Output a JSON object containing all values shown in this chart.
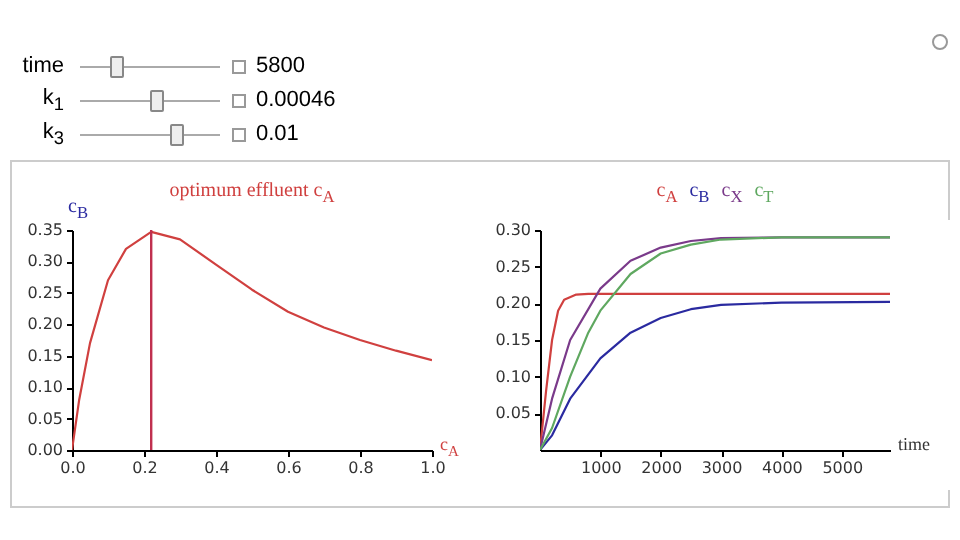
{
  "chart_data": [
    {
      "type": "other",
      "annotations": [
        "time",
        "5800",
        "k$_{1}$",
        "0.00046",
        "k$_{3}$",
        "0.01"
      ]
    },
    {
      "type": "line",
      "title": "optimum effluent c$_{A}$",
      "xlabel": "c$_{A}$",
      "ylabel": "c$_{B}$",
      "xlim": [
        0,
        1
      ],
      "xticks": [
        {
          "value": 0,
          "label": "0.0"
        },
        {
          "value": 0.2,
          "label": "0.2"
        },
        {
          "value": 0.4,
          "label": "0.4"
        },
        {
          "value": 0.6,
          "label": "0.6"
        },
        {
          "value": 0.8,
          "label": "0.8"
        },
        {
          "value": 1,
          "label": "1.0"
        }
      ],
      "ylim": [
        0,
        0.35
      ],
      "yticks": [
        {
          "value": 0,
          "label": "0.00"
        },
        {
          "value": 0.05,
          "label": "0.05"
        },
        {
          "value": 0.1,
          "label": "0.10"
        },
        {
          "value": 0.15,
          "label": "0.15"
        },
        {
          "value": 0.2,
          "label": "0.20"
        },
        {
          "value": 0.25,
          "label": "0.25"
        },
        {
          "value": 0.3,
          "label": "0.30"
        },
        {
          "value": 0.35,
          "label": "0.35"
        }
      ],
      "grid": false,
      "x": [
        0,
        0.02,
        0.05,
        0.1,
        0.15,
        0.22,
        0.3,
        0.4,
        0.5,
        0.6,
        0.7,
        0.8,
        0.9,
        1.0
      ],
      "series": [
        {
          "color": "#d0403f",
          "values": [
            0,
            0.08,
            0.17,
            0.27,
            0.32,
            0.347,
            0.335,
            0.295,
            0.255,
            0.22,
            0.195,
            0.175,
            0.158,
            0.143
          ]
        }
      ],
      "ref_lines": [
        {
          "axis": "x",
          "value": 0.22,
          "color": "#c0304f"
        }
      ]
    },
    {
      "type": "line",
      "xlabel": "time",
      "xlim": [
        0,
        5800
      ],
      "xticks": [
        1000,
        2000,
        3000,
        4000,
        5000
      ],
      "ylim": [
        0,
        0.3
      ],
      "yticks": [
        {
          "value": 0.05,
          "label": "0.05"
        },
        {
          "value": 0.1,
          "label": "0.10"
        },
        {
          "value": 0.15,
          "label": "0.15"
        },
        {
          "value": 0.2,
          "label": "0.20"
        },
        {
          "value": 0.25,
          "label": "0.25"
        },
        {
          "value": 0.3,
          "label": "0.30"
        }
      ],
      "grid": false,
      "legend": "top",
      "series": [
        {
          "name": "c$_{A}$",
          "color": "#d0403f",
          "x": [
            0,
            100,
            200,
            300,
            400,
            600,
            800,
            5800
          ],
          "values": [
            0,
            0.08,
            0.15,
            0.19,
            0.205,
            0.212,
            0.213,
            0.213
          ]
        },
        {
          "name": "c$_{B}$",
          "color": "#2a2aa0",
          "x": [
            0,
            200,
            500,
            1000,
            1500,
            2000,
            2500,
            3000,
            4000,
            5800
          ],
          "values": [
            0,
            0.02,
            0.07,
            0.125,
            0.16,
            0.18,
            0.192,
            0.198,
            0.201,
            0.202
          ]
        },
        {
          "name": "c$_{X}$",
          "color": "#7a3a8a",
          "x": [
            0,
            200,
            500,
            1000,
            1500,
            2000,
            2500,
            3000,
            4000,
            5800
          ],
          "values": [
            0,
            0.07,
            0.15,
            0.22,
            0.258,
            0.276,
            0.285,
            0.289,
            0.29,
            0.29
          ]
        },
        {
          "name": "c$_{T}$",
          "color": "#5fa860",
          "x": [
            0,
            200,
            500,
            800,
            1000,
            1500,
            2000,
            2500,
            3000,
            4000,
            5800
          ],
          "values": [
            0,
            0.03,
            0.1,
            0.16,
            0.19,
            0.24,
            0.268,
            0.28,
            0.287,
            0.29,
            0.29
          ]
        }
      ]
    }
  ]
}
